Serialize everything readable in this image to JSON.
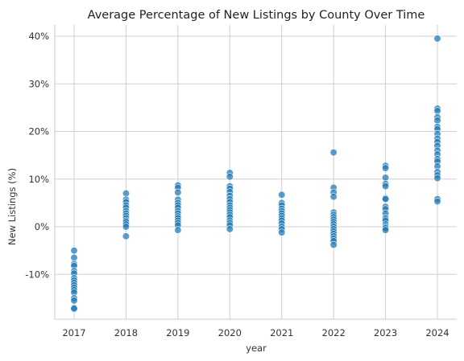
{
  "chart_data": {
    "type": "scatter",
    "title": "Average Percentage of New Listings by County Over Time",
    "xlabel": "year",
    "ylabel": "New Listings (%)",
    "x_ticks": [
      "2017",
      "2018",
      "2019",
      "2020",
      "2021",
      "2022",
      "2023",
      "2024"
    ],
    "y_ticks": [
      {
        "value": -10,
        "label": "-10%"
      },
      {
        "value": 0,
        "label": "0%"
      },
      {
        "value": 10,
        "label": "10%"
      },
      {
        "value": 20,
        "label": "20%"
      },
      {
        "value": 30,
        "label": "30%"
      },
      {
        "value": 40,
        "label": "40%"
      }
    ],
    "xlim": [
      2016.6,
      2024.4
    ],
    "ylim": [
      -18.5,
      42
    ],
    "grid": true,
    "color": "#1f77b4",
    "points": [
      {
        "x": 2017,
        "y": [
          -5,
          -6.5,
          -7.8,
          -8.2,
          -9.3,
          -9.8,
          -10.8,
          -11.3,
          -11.8,
          -12.3,
          -12.8,
          -13.3,
          -13.8,
          -15,
          -15.5,
          -17,
          -17.2
        ]
      },
      {
        "x": 2018,
        "y": [
          7,
          5.7,
          5.2,
          4.5,
          4,
          3.3,
          2.8,
          2.3,
          1.8,
          1.3,
          1,
          0.5,
          0,
          -2
        ]
      },
      {
        "x": 2019,
        "y": [
          8.7,
          8.2,
          7.2,
          5.7,
          5,
          4.5,
          4,
          3.3,
          2.8,
          2.2,
          1.8,
          1.3,
          0.8,
          0.3,
          -0.7
        ]
      },
      {
        "x": 2020,
        "y": [
          11.3,
          10.5,
          8.5,
          8,
          7.3,
          6.5,
          5.8,
          5.2,
          4.5,
          4,
          3.5,
          3,
          2.5,
          2,
          1.3,
          0.8,
          0.3,
          -0.5
        ]
      },
      {
        "x": 2021,
        "y": [
          6.7,
          5,
          4.5,
          3.8,
          3.3,
          2.8,
          2.3,
          1.8,
          1.3,
          0.7,
          0,
          -0.5,
          -1.2
        ]
      },
      {
        "x": 2022,
        "y": [
          15.6,
          8.2,
          7.2,
          6.3,
          3,
          2.5,
          2,
          1.5,
          1,
          0.5,
          0,
          -0.5,
          -1,
          -1.5,
          -2,
          -2.5,
          -3,
          -3.8
        ]
      },
      {
        "x": 2023,
        "y": [
          12.8,
          12.3,
          10.3,
          9,
          8.5,
          6,
          5.8,
          4.2,
          3.7,
          2.8,
          1.8,
          1.3,
          0.5,
          0,
          -0.3,
          -0.7
        ]
      },
      {
        "x": 2024,
        "y": [
          39.5,
          24.8,
          24.3,
          23,
          22.3,
          21,
          20.5,
          19.5,
          18.5,
          17.8,
          17,
          16,
          15.2,
          14.2,
          13.7,
          12.7,
          11.5,
          10.8,
          10.2,
          5.8,
          5.3
        ]
      }
    ]
  }
}
